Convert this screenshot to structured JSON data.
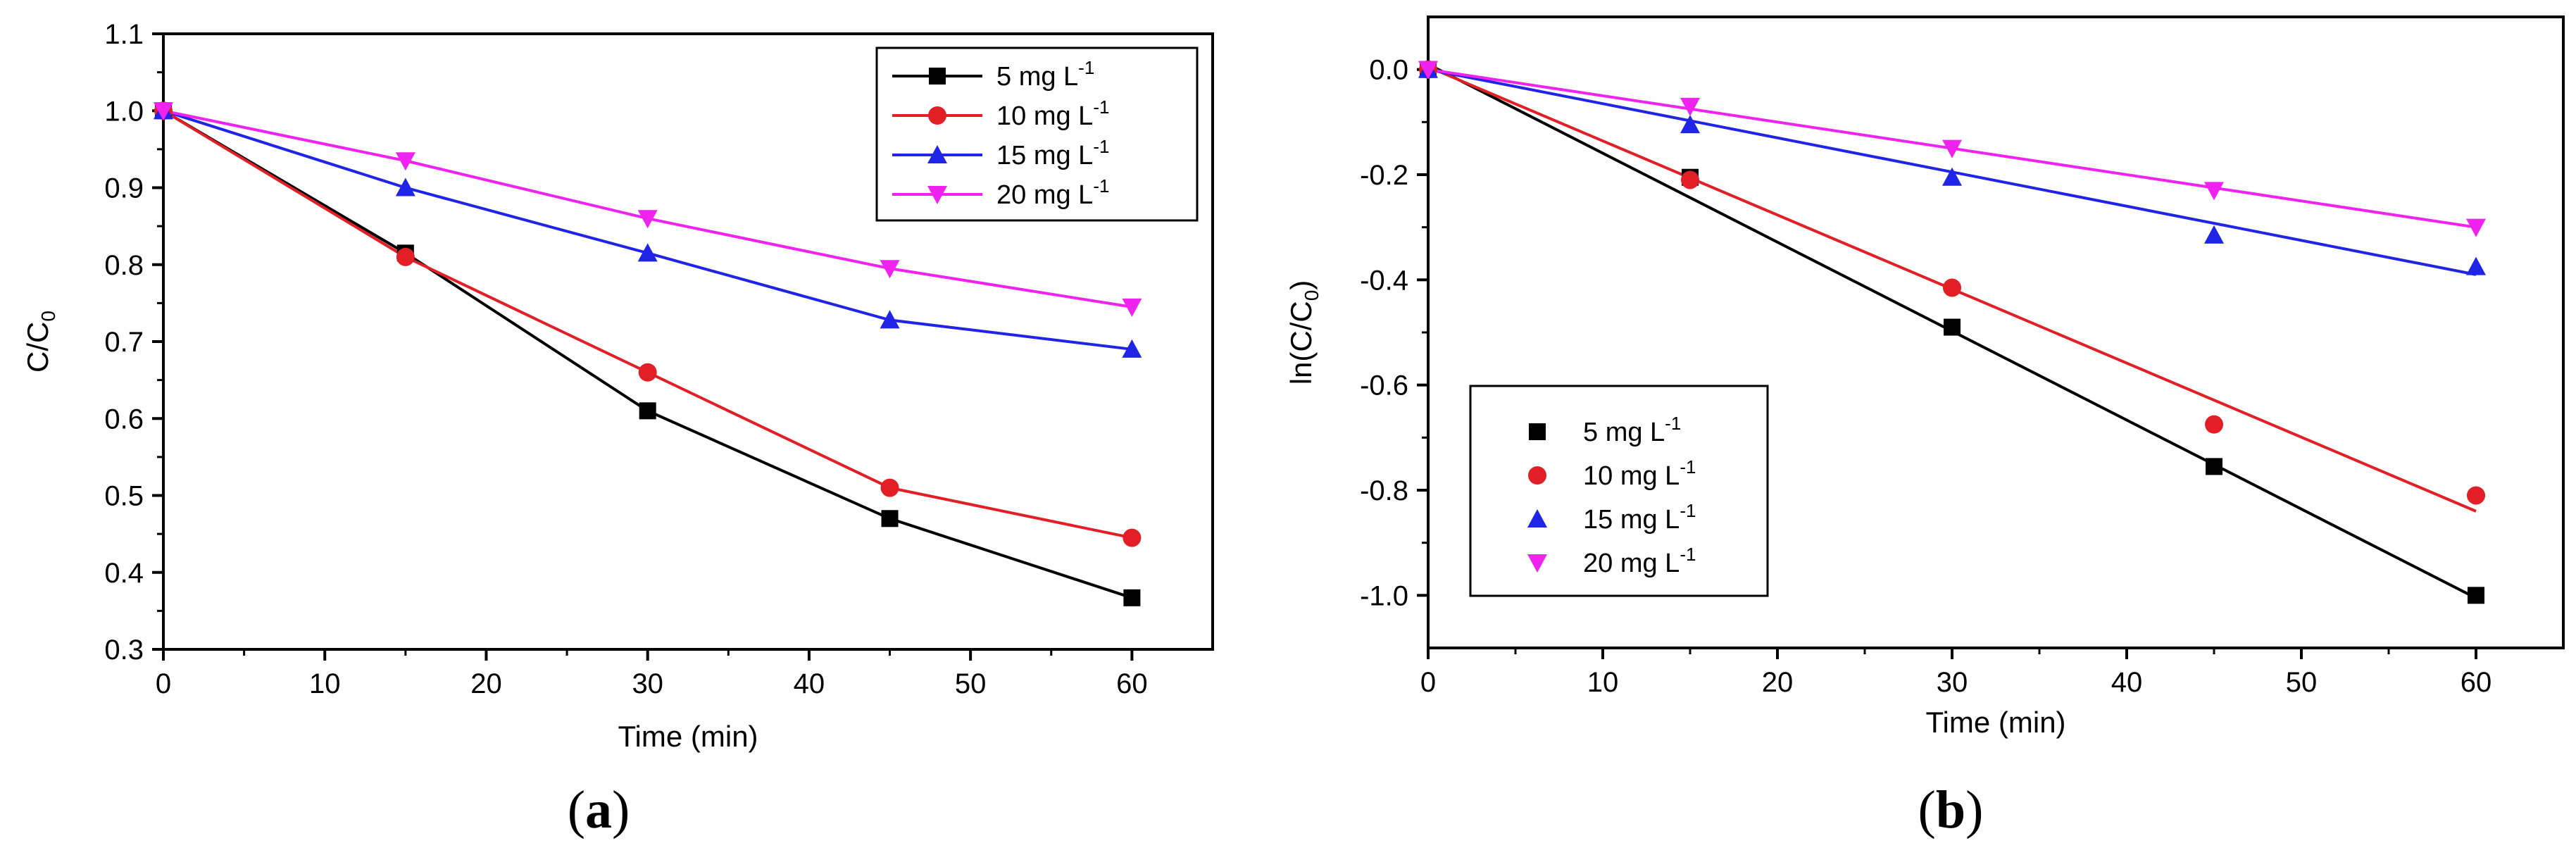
{
  "colors": {
    "s5": "#000000",
    "s10": "#e21f26",
    "s15": "#1f24e6",
    "s20": "#ef22ef",
    "axis": "#000000"
  },
  "chart_data": [
    {
      "id": "a",
      "type": "line",
      "panel_label": "a",
      "xlabel": "Time (min)",
      "ylabel": "C/C",
      "ylabel_sub": "0",
      "xlim": [
        0,
        65
      ],
      "ylim": [
        0.3,
        1.1
      ],
      "xticks": [
        0,
        10,
        20,
        30,
        40,
        50,
        60
      ],
      "yticks": [
        0.3,
        0.4,
        0.5,
        0.6,
        0.7,
        0.8,
        0.9,
        1.0,
        1.1
      ],
      "legend_position": "top-right",
      "x": [
        0,
        15,
        30,
        45,
        60
      ],
      "series": [
        {
          "name": "5 mg L",
          "sup": "-1",
          "color_key": "s5",
          "marker": "square",
          "values": [
            1.0,
            0.815,
            0.61,
            0.47,
            0.367
          ]
        },
        {
          "name": "10 mg L",
          "sup": "-1",
          "color_key": "s10",
          "marker": "circle",
          "values": [
            1.0,
            0.81,
            0.66,
            0.51,
            0.445
          ]
        },
        {
          "name": "15 mg L",
          "sup": "-1",
          "color_key": "s15",
          "marker": "triangle-up",
          "values": [
            1.0,
            0.9,
            0.815,
            0.728,
            0.69
          ]
        },
        {
          "name": "20 mg L",
          "sup": "-1",
          "color_key": "s20",
          "marker": "triangle-down",
          "values": [
            1.0,
            0.935,
            0.86,
            0.795,
            0.745
          ]
        }
      ]
    },
    {
      "id": "b",
      "type": "scatter",
      "panel_label": "b",
      "xlabel": "Time (min)",
      "ylabel": "ln(C/C",
      "ylabel_sub": "0",
      "ylabel_end": ")",
      "xlim": [
        0,
        65
      ],
      "ylim": [
        -1.1,
        0.1
      ],
      "xticks": [
        0,
        10,
        20,
        30,
        40,
        50,
        60
      ],
      "yticks": [
        0.0,
        -0.2,
        -0.4,
        -0.6,
        -0.8,
        -1.0
      ],
      "legend_position": "bottom-left",
      "fit_lines": true,
      "x": [
        0,
        15,
        30,
        45,
        60
      ],
      "series": [
        {
          "name": "5 mg L",
          "sup": "-1",
          "color_key": "s5",
          "marker": "square",
          "values": [
            0.0,
            -0.205,
            -0.49,
            -0.755,
            -1.0
          ],
          "fit": [
            0.01,
            -1.005
          ]
        },
        {
          "name": "10 mg L",
          "sup": "-1",
          "color_key": "s10",
          "marker": "circle",
          "values": [
            0.0,
            -0.21,
            -0.415,
            -0.675,
            -0.81
          ],
          "fit": [
            0.005,
            -0.84
          ]
        },
        {
          "name": "15 mg L",
          "sup": "-1",
          "color_key": "s15",
          "marker": "triangle-up",
          "values": [
            0.0,
            -0.105,
            -0.205,
            -0.315,
            -0.375
          ],
          "fit": [
            0.0,
            -0.39
          ]
        },
        {
          "name": "20 mg L",
          "sup": "-1",
          "color_key": "s20",
          "marker": "triangle-down",
          "values": [
            0.0,
            -0.07,
            -0.15,
            -0.23,
            -0.3
          ],
          "fit": [
            0.0,
            -0.3
          ]
        }
      ]
    }
  ]
}
